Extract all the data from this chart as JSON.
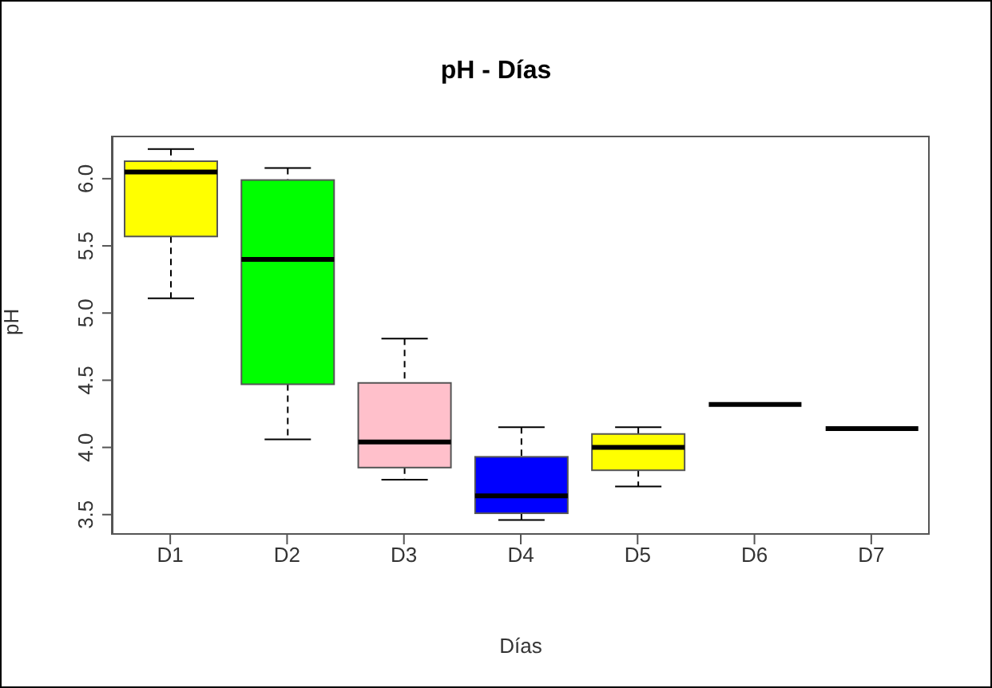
{
  "chart_data": {
    "type": "box",
    "title": "pH - Días",
    "xlabel": "Días",
    "ylabel": "pH",
    "categories": [
      "D1",
      "D2",
      "D3",
      "D4",
      "D5",
      "D6",
      "D7"
    ],
    "colors": [
      "#ffff00",
      "#00ff00",
      "#ffc0cb",
      "#0000ff",
      "#ffff00",
      "#000000",
      "#000000"
    ],
    "boxes": [
      {
        "low": 5.11,
        "q1": 5.57,
        "median": 6.05,
        "q3": 6.13,
        "high": 6.22
      },
      {
        "low": 4.06,
        "q1": 4.47,
        "median": 5.4,
        "q3": 5.99,
        "high": 6.08
      },
      {
        "low": 3.76,
        "q1": 3.85,
        "median": 4.04,
        "q3": 4.48,
        "high": 4.81
      },
      {
        "low": 3.46,
        "q1": 3.51,
        "median": 3.64,
        "q3": 3.93,
        "high": 4.15
      },
      {
        "low": 3.71,
        "q1": 3.83,
        "median": 4.0,
        "q3": 4.1,
        "high": 4.15
      },
      {
        "low": 4.32,
        "q1": 4.32,
        "median": 4.32,
        "q3": 4.32,
        "high": 4.32
      },
      {
        "low": 4.14,
        "q1": 4.14,
        "median": 4.14,
        "q3": 4.14,
        "high": 4.14
      }
    ],
    "ylim": [
      3.35,
      6.32
    ],
    "yticks": [
      {
        "value": 3.5,
        "label": "3.5"
      },
      {
        "value": 4,
        "label": "4.0"
      },
      {
        "value": 4.5,
        "label": "4.5"
      },
      {
        "value": 5,
        "label": "5.0"
      },
      {
        "value": 5.5,
        "label": "5.5"
      },
      {
        "value": 6,
        "label": "6.0"
      }
    ],
    "grid": false
  }
}
